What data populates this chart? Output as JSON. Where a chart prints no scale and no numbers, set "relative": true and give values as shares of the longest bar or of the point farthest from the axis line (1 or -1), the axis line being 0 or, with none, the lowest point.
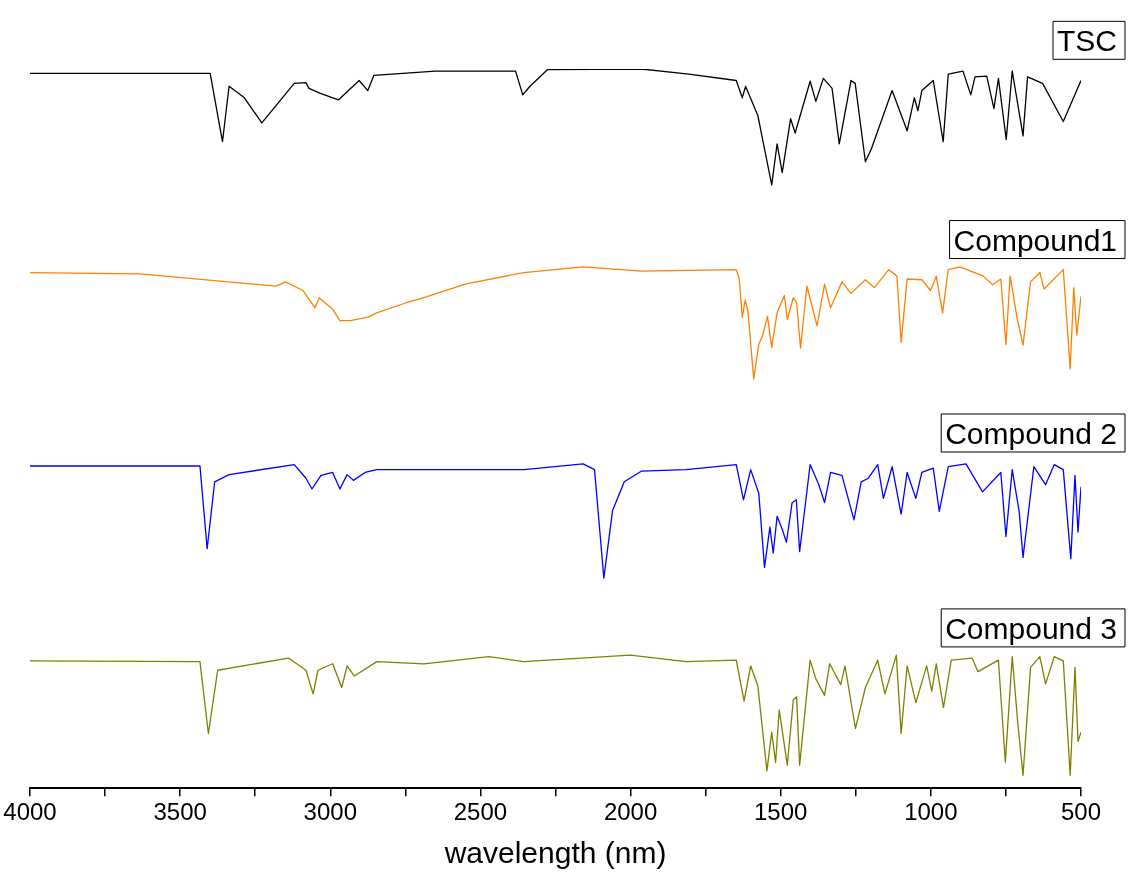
{
  "chart_data": {
    "type": "line",
    "xlabel": "wavelength (nm)",
    "relative": true,
    "legend": false,
    "grid": false,
    "marker": "none",
    "line_style": "solid",
    "xlim": [
      4000,
      500
    ],
    "xticks": [
      4000,
      {
        "value": 3750,
        "label": null
      },
      3500,
      {
        "value": 3250,
        "label": null
      },
      3000,
      {
        "value": 2750,
        "label": null
      },
      2500,
      {
        "value": 2250,
        "label": null
      },
      2000,
      {
        "value": 1750,
        "label": null
      },
      1500,
      {
        "value": 1250,
        "label": null
      },
      1000,
      {
        "value": 750,
        "label": null
      },
      500
    ],
    "series": [
      {
        "name": "TSC",
        "color": "#000000",
        "x": [
          4000,
          3400,
          3359,
          3337,
          3286,
          3228,
          3120,
          3081,
          3071,
          3033,
          2973,
          2904,
          2875,
          2855,
          2650,
          2383,
          2359,
          2335,
          2277,
          1963,
          1806,
          1648,
          1628,
          1617,
          1576,
          1530,
          1512,
          1495,
          1467,
          1452,
          1402,
          1383,
          1358,
          1329,
          1305,
          1266,
          1252,
          1218,
          1198,
          1129,
          1079,
          1055,
          1043,
          1030,
          992,
          959,
          942,
          893,
          867,
          853,
          814,
          790,
          775,
          749,
          729,
          693,
          678,
          628,
          559,
          500
        ],
        "values": [
          0.994,
          0.994,
          0.899,
          0.976,
          0.96,
          0.925,
          0.98,
          0.981,
          0.973,
          0.966,
          0.957,
          0.984,
          0.97,
          0.991,
          0.997,
          0.997,
          0.964,
          0.976,
          0.999,
          1,
          0.993,
          0.984,
          0.96,
          0.976,
          0.935,
          0.839,
          0.896,
          0.856,
          0.931,
          0.911,
          0.983,
          0.955,
          0.987,
          0.973,
          0.896,
          0.984,
          0.98,
          0.871,
          0.889,
          0.97,
          0.914,
          0.96,
          0.942,
          0.97,
          0.984,
          0.899,
          0.993,
          0.997,
          0.964,
          0.989,
          0.99,
          0.945,
          0.987,
          0.902,
          0.997,
          0.907,
          0.989,
          0.98,
          0.927,
          0.984
        ]
      },
      {
        "name": "Compound1",
        "color": "#ff8000",
        "x": [
          4000,
          3634,
          3180,
          3149,
          3091,
          3051,
          3037,
          2992,
          2968,
          2933,
          2875,
          2845,
          2747,
          2688,
          2551,
          2356,
          2158,
          1963,
          1648,
          1638,
          1628,
          1618,
          1609,
          1590,
          1573,
          1560,
          1544,
          1530,
          1512,
          1488,
          1478,
          1458,
          1447,
          1434,
          1413,
          1379,
          1354,
          1334,
          1296,
          1266,
          1218,
          1188,
          1140,
          1113,
          1099,
          1079,
          1030,
          1001,
          982,
          961,
          942,
          903,
          825,
          794,
          767,
          750,
          736,
          712,
          693,
          668,
          637,
          623,
          559,
          536,
          524,
          514,
          500
        ],
        "values": [
          0.717,
          0.715,
          0.698,
          0.704,
          0.692,
          0.668,
          0.682,
          0.666,
          0.65,
          0.65,
          0.655,
          0.661,
          0.675,
          0.682,
          0.701,
          0.717,
          0.725,
          0.719,
          0.721,
          0.708,
          0.655,
          0.679,
          0.663,
          0.569,
          0.617,
          0.63,
          0.656,
          0.613,
          0.661,
          0.685,
          0.652,
          0.682,
          0.675,
          0.612,
          0.698,
          0.643,
          0.701,
          0.668,
          0.704,
          0.688,
          0.707,
          0.696,
          0.721,
          0.712,
          0.62,
          0.708,
          0.707,
          0.692,
          0.712,
          0.661,
          0.721,
          0.725,
          0.712,
          0.7,
          0.708,
          0.617,
          0.712,
          0.652,
          0.616,
          0.704,
          0.717,
          0.694,
          0.721,
          0.583,
          0.696,
          0.63,
          0.684
        ]
      },
      {
        "name": "Compound 2",
        "color": "#0000ff",
        "x": [
          4000,
          3434,
          3410,
          3385,
          3337,
          3120,
          3081,
          3061,
          3031,
          2992,
          2968,
          2944,
          2923,
          2884,
          2845,
          2355,
          2158,
          2120,
          2089,
          2060,
          2021,
          1963,
          1816,
          1648,
          1624,
          1600,
          1573,
          1554,
          1536,
          1525,
          1512,
          1495,
          1481,
          1462,
          1448,
          1437,
          1402,
          1373,
          1354,
          1334,
          1296,
          1256,
          1232,
          1208,
          1177,
          1158,
          1129,
          1099,
          1079,
          1050,
          1030,
          992,
          972,
          942,
          883,
          828,
          767,
          750,
          729,
          706,
          693,
          657,
          618,
          589,
          559,
          534,
          520,
          510,
          500
        ],
        "values": [
          0.448,
          0.448,
          0.333,
          0.426,
          0.436,
          0.45,
          0.431,
          0.416,
          0.435,
          0.439,
          0.416,
          0.436,
          0.428,
          0.439,
          0.443,
          0.443,
          0.451,
          0.443,
          0.292,
          0.386,
          0.426,
          0.441,
          0.443,
          0.45,
          0.401,
          0.443,
          0.41,
          0.307,
          0.363,
          0.327,
          0.378,
          0.36,
          0.342,
          0.397,
          0.401,
          0.329,
          0.45,
          0.422,
          0.397,
          0.439,
          0.435,
          0.373,
          0.426,
          0.431,
          0.45,
          0.403,
          0.447,
          0.381,
          0.439,
          0.403,
          0.439,
          0.445,
          0.385,
          0.447,
          0.451,
          0.412,
          0.439,
          0.35,
          0.443,
          0.385,
          0.321,
          0.447,
          0.422,
          0.45,
          0.443,
          0.319,
          0.435,
          0.356,
          0.419
        ]
      },
      {
        "name": "Compound 3",
        "color": "#808000",
        "x": [
          4000,
          3434,
          3406,
          3375,
          3139,
          3081,
          3057,
          3041,
          2992,
          2962,
          2944,
          2920,
          2845,
          2688,
          2472,
          2355,
          2001,
          1816,
          1648,
          1622,
          1600,
          1576,
          1546,
          1530,
          1517,
          1505,
          1491,
          1478,
          1458,
          1447,
          1437,
          1402,
          1383,
          1354,
          1337,
          1300,
          1286,
          1251,
          1218,
          1177,
          1153,
          1115,
          1099,
          1079,
          1050,
          1014,
          997,
          982,
          958,
          932,
          863,
          843,
          775,
          752,
          729,
          710,
          693,
          668,
          637,
          618,
          589,
          559,
          536,
          520,
          510,
          500
        ],
        "values": [
          0.177,
          0.176,
          0.076,
          0.164,
          0.181,
          0.164,
          0.131,
          0.164,
          0.173,
          0.14,
          0.17,
          0.156,
          0.176,
          0.173,
          0.183,
          0.176,
          0.185,
          0.176,
          0.178,
          0.121,
          0.17,
          0.142,
          0.024,
          0.078,
          0.036,
          0.109,
          0.069,
          0.032,
          0.123,
          0.127,
          0.032,
          0.178,
          0.152,
          0.129,
          0.173,
          0.144,
          0.17,
          0.083,
          0.14,
          0.178,
          0.131,
          0.185,
          0.076,
          0.17,
          0.119,
          0.17,
          0.135,
          0.173,
          0.112,
          0.178,
          0.181,
          0.162,
          0.178,
          0.036,
          0.183,
          0.088,
          0.018,
          0.168,
          0.183,
          0.145,
          0.183,
          0.177,
          0.018,
          0.168,
          0.065,
          0.078
        ]
      }
    ]
  }
}
